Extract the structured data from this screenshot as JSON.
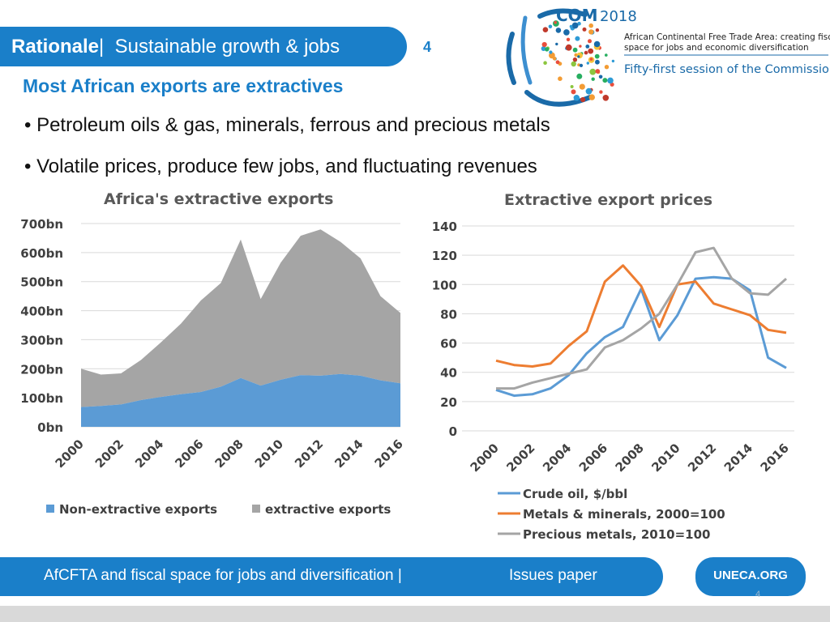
{
  "header": {
    "section": "Rationale",
    "separator": "|",
    "topic": "Sustainable growth & jobs",
    "slide_number": "4"
  },
  "logo": {
    "com": "COM",
    "year": "2018",
    "line1": "African Continental Free Trade Area: creating fiscal",
    "line2": "space for jobs and economic diversification",
    "session": "Fifty-first session of the Commission"
  },
  "subtitle": "Most African exports are extractives",
  "bullets": [
    "Petroleum oils & gas, minerals, ferrous and precious metals",
    "Volatile prices, produce few jobs, and fluctuating revenues"
  ],
  "colors": {
    "brand_blue": "#1a7fc9",
    "non_extractive": "#5b9bd5",
    "extractive": "#a5a5a5",
    "crude": "#5b9bd5",
    "metals": "#ed7d31",
    "precious": "#a5a5a5"
  },
  "chart_data": [
    {
      "type": "area",
      "stacked": true,
      "title": "Africa's extractive exports",
      "x": [
        2000,
        2001,
        2002,
        2003,
        2004,
        2005,
        2006,
        2007,
        2008,
        2009,
        2010,
        2011,
        2012,
        2013,
        2014,
        2015,
        2016
      ],
      "x_tick_labels": [
        "2000",
        "2002",
        "2004",
        "2006",
        "2008",
        "2010",
        "2012",
        "2014",
        "2016"
      ],
      "y_tick_labels": [
        "0bn",
        "100bn",
        "200bn",
        "300bn",
        "400bn",
        "500bn",
        "600bn",
        "700bn"
      ],
      "ylim": [
        0,
        700
      ],
      "series": [
        {
          "name": "Non-extractive exports",
          "values": [
            68,
            72,
            77,
            92,
            103,
            112,
            120,
            138,
            168,
            142,
            162,
            178,
            176,
            182,
            176,
            160,
            150
          ]
        },
        {
          "name": "extractive exports",
          "values": [
            132,
            108,
            107,
            138,
            188,
            243,
            315,
            357,
            477,
            298,
            403,
            480,
            504,
            455,
            404,
            290,
            242
          ]
        }
      ],
      "legend": [
        "Non-extractive exports",
        "extractive exports"
      ],
      "legend_position": "bottom"
    },
    {
      "type": "line",
      "title": "Extractive export prices",
      "x": [
        2000,
        2001,
        2002,
        2003,
        2004,
        2005,
        2006,
        2007,
        2008,
        2009,
        2010,
        2011,
        2012,
        2013,
        2014,
        2015,
        2016
      ],
      "x_tick_labels": [
        "2000",
        "2002",
        "2004",
        "2006",
        "2008",
        "2010",
        "2012",
        "2014",
        "2016"
      ],
      "y_tick_labels": [
        "0",
        "20",
        "40",
        "60",
        "80",
        "100",
        "120",
        "140"
      ],
      "ylim": [
        0,
        140
      ],
      "series": [
        {
          "name": "Crude oil, $/bbl",
          "values": [
            28,
            24,
            25,
            29,
            38,
            53,
            64,
            71,
            97,
            62,
            79,
            104,
            105,
            104,
            96,
            50,
            43
          ]
        },
        {
          "name": "Metals & minerals, 2000=100",
          "values": [
            48,
            45,
            44,
            46,
            58,
            68,
            102,
            113,
            99,
            71,
            100,
            102,
            87,
            83,
            79,
            69,
            67
          ]
        },
        {
          "name": "Precious metals, 2010=100",
          "values": [
            29,
            29,
            33,
            36,
            39,
            42,
            57,
            62,
            70,
            80,
            100,
            122,
            125,
            104,
            94,
            93,
            104
          ]
        }
      ],
      "legend_position": "bottom"
    }
  ],
  "footer": {
    "text": "AfCFTA and fiscal space for jobs and diversification |",
    "paper": "Issues paper",
    "link": "UNECA.ORG",
    "page": "4"
  }
}
